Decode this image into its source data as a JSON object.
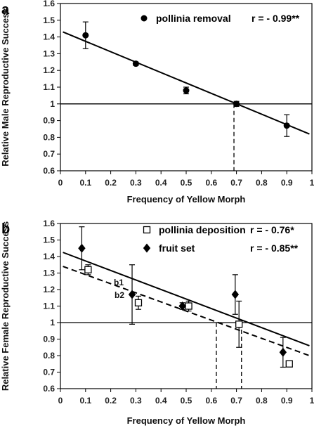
{
  "chart_data": [
    {
      "type": "scatter",
      "panel_label": "a",
      "xlabel": "Frequency of Yellow Morph",
      "ylabel": "Relative Male Reproductive Success",
      "xlim": [
        0,
        1
      ],
      "ylim": [
        0.6,
        1.6
      ],
      "xticks": [
        "0",
        "0.1",
        "0.2",
        "0.3",
        "0.4",
        "0.5",
        "0.6",
        "0.7",
        "0.8",
        "0.9",
        "1"
      ],
      "yticks": [
        "0.6",
        "0.7",
        "0.8",
        "0.9",
        "1",
        "1.1",
        "1.2",
        "1.3",
        "1.4",
        "1.5",
        "1.6"
      ],
      "grid": false,
      "legend_position": "top-right",
      "reference_line_y": 1,
      "series": [
        {
          "name": "pollinia removal",
          "stat": "r = - 0.99**",
          "marker": "circle",
          "x": [
            0.1,
            0.3,
            0.5,
            0.7,
            0.9
          ],
          "y": [
            1.41,
            1.24,
            1.08,
            1.0,
            0.87
          ],
          "error": [
            0.08,
            0.01,
            0.02,
            0.015,
            0.065
          ],
          "fit": {
            "style": "solid",
            "from": [
              0.01,
              1.43
            ],
            "to": [
              0.99,
              0.82
            ]
          }
        }
      ],
      "dashed_drop_lines_x": [
        0.69
      ]
    },
    {
      "type": "scatter",
      "panel_label": "b",
      "xlabel": "Frequency of Yellow Morph",
      "ylabel": "Relative Female Reproductive Success",
      "xlim": [
        0,
        1
      ],
      "ylim": [
        0.6,
        1.6
      ],
      "xticks": [
        "0",
        "0.1",
        "0.2",
        "0.3",
        "0.4",
        "0.5",
        "0.6",
        "0.7",
        "0.8",
        "0.9",
        "1"
      ],
      "yticks": [
        "0.6",
        "0.7",
        "0.8",
        "0.9",
        "1",
        "1.1",
        "1.2",
        "1.3",
        "1.4",
        "1.5",
        "1.6"
      ],
      "grid": false,
      "legend_position": "top-right",
      "reference_line_y": 1,
      "series": [
        {
          "name": "pollinia deposition",
          "stat": "r = - 0.76*",
          "marker": "square-open",
          "x": [
            0.11,
            0.31,
            0.51,
            0.71,
            0.91
          ],
          "y": [
            1.32,
            1.12,
            1.1,
            0.99,
            0.75
          ],
          "error": [
            0.03,
            0.04,
            0.03,
            0.14,
            0.01
          ],
          "fit": {
            "style": "dashed",
            "label": "b2",
            "from": [
              0.01,
              1.34
            ],
            "to": [
              0.99,
              0.8
            ]
          }
        },
        {
          "name": "fruit set",
          "stat": "r = - 0.85**",
          "marker": "diamond",
          "x": [
            0.085,
            0.285,
            0.485,
            0.695,
            0.885
          ],
          "y": [
            1.45,
            1.17,
            1.1,
            1.17,
            0.82
          ],
          "error": [
            0.13,
            0.18,
            0.02,
            0.12,
            0.09
          ],
          "fit": {
            "style": "solid",
            "label": "b1",
            "from": [
              0.01,
              1.425
            ],
            "to": [
              0.99,
              0.86
            ]
          }
        }
      ],
      "dashed_drop_lines_x": [
        0.62,
        0.72
      ]
    }
  ]
}
